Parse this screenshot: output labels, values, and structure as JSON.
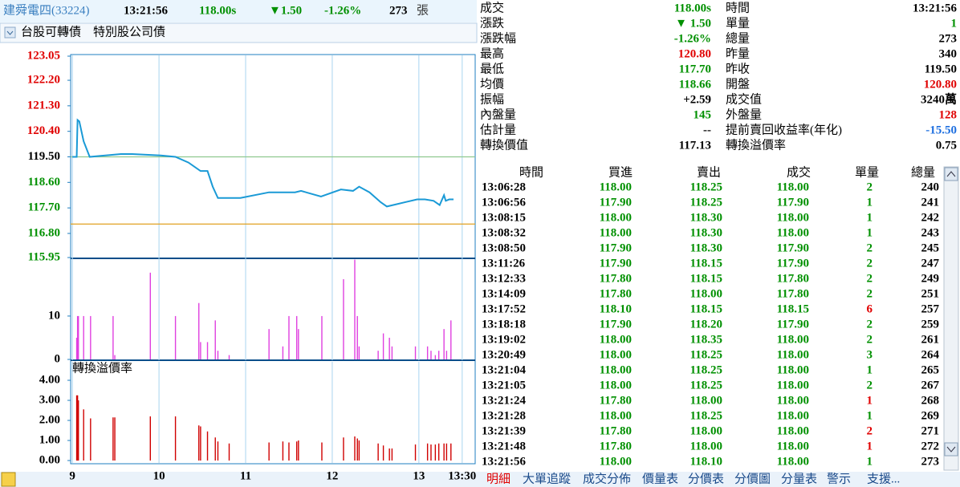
{
  "header": {
    "title": "建舜電四(33224)",
    "time": "13:21:56",
    "price": "118.00s",
    "change": "▼1.50",
    "change_pct": "-1.26%",
    "volume": "273",
    "volume_unit": "張"
  },
  "subbar": {
    "items": [
      "台股可轉債",
      "特別股公司債"
    ]
  },
  "chart_data": [
    {
      "type": "line",
      "color": "#1a9ad6",
      "x": [
        9.0,
        9.05,
        9.06,
        9.08,
        9.13,
        9.2,
        9.56,
        9.69,
        10.02,
        10.19,
        10.34,
        10.48,
        10.56,
        10.62,
        10.68,
        10.94,
        11.27,
        11.57,
        11.64,
        11.87,
        12.1,
        12.24,
        12.31,
        12.43,
        12.56,
        12.63,
        12.7,
        12.98,
        13.07,
        13.17,
        13.24,
        13.29,
        13.31,
        13.35,
        13.4
      ],
      "values": [
        119.5,
        119.5,
        120.8,
        120.75,
        120.05,
        119.5,
        119.6,
        119.6,
        119.55,
        119.5,
        119.3,
        119.0,
        119.0,
        118.45,
        118.05,
        118.05,
        118.25,
        118.25,
        118.3,
        118.1,
        118.35,
        118.3,
        118.45,
        118.25,
        117.9,
        117.75,
        117.8,
        118.0,
        118.0,
        117.95,
        117.8,
        118.15,
        117.95,
        118.0,
        118.0
      ],
      "xlim": [
        8.98,
        13.65
      ],
      "ylim": [
        115.95,
        123.05
      ],
      "yticks": [
        123.05,
        {
          "value": 122.2,
          "label": "122.20"
        },
        {
          "value": 121.3,
          "label": "121.30"
        },
        {
          "value": 120.4,
          "label": "120.40"
        },
        {
          "value": 119.5,
          "label": "119.50"
        },
        {
          "value": 118.6,
          "label": "118.60"
        },
        {
          "value": 117.7,
          "label": "117.70"
        },
        {
          "value": 116.8,
          "label": "116.80"
        },
        115.95
      ],
      "reference": 119.5,
      "lines": [
        {
          "value": 119.5,
          "color": "#8fc98f"
        },
        {
          "value": 117.13,
          "color": "#e0a020"
        }
      ]
    },
    {
      "type": "bar",
      "color": "#e040e0",
      "x": [
        9.05,
        9.06,
        9.07,
        9.13,
        9.21,
        9.47,
        9.49,
        9.9,
        10.19,
        10.46,
        10.48,
        10.56,
        10.65,
        10.68,
        10.81,
        11.27,
        11.43,
        11.5,
        11.59,
        11.61,
        11.88,
        12.13,
        12.26,
        12.29,
        12.31,
        12.53,
        12.59,
        12.66,
        12.69,
        12.96,
        13.1,
        13.14,
        13.19,
        13.23,
        13.29,
        13.32,
        13.37
      ],
      "values": [
        5,
        10,
        10,
        10,
        10,
        10,
        1,
        20,
        10,
        13,
        4,
        4,
        9,
        2,
        1,
        7,
        3,
        10,
        10,
        7,
        10,
        18.5,
        23,
        10,
        3,
        2,
        6,
        5,
        3,
        3,
        3,
        2,
        1,
        2,
        7,
        2,
        9
      ],
      "xlim": [
        8.98,
        13.65
      ],
      "ylim": [
        0,
        23.3
      ],
      "yticks": [
        10,
        0
      ]
    },
    {
      "type": "bar",
      "title": "轉換溢價率",
      "color": "#d00000",
      "x": [
        9.05,
        9.06,
        9.07,
        9.13,
        9.21,
        9.47,
        9.49,
        9.9,
        10.19,
        10.46,
        10.48,
        10.56,
        10.65,
        10.68,
        10.81,
        11.27,
        11.43,
        11.5,
        11.59,
        11.61,
        11.88,
        12.13,
        12.26,
        12.29,
        12.31,
        12.53,
        12.59,
        12.66,
        12.69,
        12.96,
        13.1,
        13.14,
        13.19,
        13.23,
        13.29,
        13.32,
        13.37
      ],
      "values": [
        3.25,
        3.25,
        3.0,
        2.55,
        2.1,
        2.15,
        2.15,
        2.2,
        2.2,
        1.75,
        1.7,
        1.45,
        1.15,
        0.95,
        0.85,
        0.9,
        0.95,
        0.9,
        0.95,
        1.0,
        0.9,
        1.15,
        1.2,
        1.1,
        1.0,
        0.85,
        0.75,
        0.6,
        0.6,
        0.8,
        0.85,
        0.8,
        0.8,
        0.85,
        0.85,
        0.85,
        0.85
      ],
      "xlim": [
        8.98,
        13.65
      ],
      "ylim": [
        0,
        4.88
      ],
      "yticks": [
        {
          "value": 4,
          "label": "4.00"
        },
        {
          "value": 3,
          "label": "3.00"
        },
        {
          "value": 2,
          "label": "2.00"
        },
        {
          "value": 1,
          "label": "1.00"
        },
        {
          "value": 0,
          "label": "0.00"
        }
      ],
      "xticks": [
        9,
        10,
        11,
        12,
        13,
        {
          "value": 13.5,
          "label": "13:30"
        }
      ]
    }
  ],
  "quote": [
    [
      {
        "label": "成交",
        "value": "118.00s",
        "color": "#009000"
      },
      {
        "label": "時間",
        "value": "13:21:56",
        "color": "#000"
      }
    ],
    [
      {
        "label": "漲跌",
        "value": "▼ 1.50",
        "color": "#009000"
      },
      {
        "label": "單量",
        "value": "1",
        "color": "#009000"
      }
    ],
    [
      {
        "label": "漲跌幅",
        "value": "-1.26%",
        "color": "#009000"
      },
      {
        "label": "總量",
        "value": "273",
        "color": "#000"
      }
    ],
    [
      {
        "label": "最高",
        "value": "120.80",
        "color": "#e00000"
      },
      {
        "label": "昨量",
        "value": "340",
        "color": "#000"
      }
    ],
    [
      {
        "label": "最低",
        "value": "117.70",
        "color": "#009000"
      },
      {
        "label": "昨收",
        "value": "119.50",
        "color": "#000"
      }
    ],
    [
      {
        "label": "均價",
        "value": "118.66",
        "color": "#009000"
      },
      {
        "label": "開盤",
        "value": "120.80",
        "color": "#e00000"
      }
    ],
    [
      {
        "label": "振幅",
        "value": "+2.59",
        "color": "#000"
      },
      {
        "label": "成交值",
        "value": "3240萬",
        "color": "#000"
      }
    ],
    [
      {
        "label": "內盤量",
        "value": "145",
        "color": "#009000"
      },
      {
        "label": "外盤量",
        "value": "128",
        "color": "#e00000"
      }
    ],
    [
      {
        "label": "估計量",
        "value": "--",
        "color": "#000"
      },
      {
        "label": "提前賣回收益率(年化)",
        "value": "-15.50",
        "color": "#1e6fe0"
      }
    ],
    [
      {
        "label": "轉換價值",
        "value": "117.13",
        "color": "#000"
      },
      {
        "label": "轉換溢價率",
        "value": "0.75",
        "color": "#000"
      }
    ]
  ],
  "trades": {
    "columns": [
      "時間",
      "買進",
      "賣出",
      "成交",
      "單量",
      "總量"
    ],
    "rows": [
      {
        "cells": [
          "13:06:28",
          "118.00",
          "118.25",
          "118.00",
          "2",
          "240"
        ],
        "vol_color": "#009000"
      },
      {
        "cells": [
          "13:06:56",
          "117.90",
          "118.25",
          "117.90",
          "1",
          "241"
        ],
        "vol_color": "#009000"
      },
      {
        "cells": [
          "13:08:15",
          "118.00",
          "118.30",
          "118.00",
          "1",
          "242"
        ],
        "vol_color": "#009000"
      },
      {
        "cells": [
          "13:08:32",
          "118.00",
          "118.30",
          "118.00",
          "1",
          "243"
        ],
        "vol_color": "#009000"
      },
      {
        "cells": [
          "13:08:50",
          "117.90",
          "118.30",
          "117.90",
          "2",
          "245"
        ],
        "vol_color": "#009000"
      },
      {
        "cells": [
          "13:11:26",
          "117.90",
          "118.15",
          "117.90",
          "2",
          "247"
        ],
        "vol_color": "#009000"
      },
      {
        "cells": [
          "13:12:33",
          "117.80",
          "118.15",
          "117.80",
          "2",
          "249"
        ],
        "vol_color": "#009000"
      },
      {
        "cells": [
          "13:14:09",
          "117.80",
          "118.00",
          "117.80",
          "2",
          "251"
        ],
        "vol_color": "#009000"
      },
      {
        "cells": [
          "13:17:52",
          "118.10",
          "118.15",
          "118.15",
          "6",
          "257"
        ],
        "vol_color": "#e00000"
      },
      {
        "cells": [
          "13:18:18",
          "117.90",
          "118.20",
          "117.90",
          "2",
          "259"
        ],
        "vol_color": "#009000"
      },
      {
        "cells": [
          "13:19:02",
          "118.00",
          "118.35",
          "118.00",
          "2",
          "261"
        ],
        "vol_color": "#009000"
      },
      {
        "cells": [
          "13:20:49",
          "118.00",
          "118.25",
          "118.00",
          "3",
          "264"
        ],
        "vol_color": "#009000"
      },
      {
        "cells": [
          "13:21:04",
          "118.00",
          "118.25",
          "118.00",
          "1",
          "265"
        ],
        "vol_color": "#009000"
      },
      {
        "cells": [
          "13:21:05",
          "118.00",
          "118.25",
          "118.00",
          "2",
          "267"
        ],
        "vol_color": "#009000"
      },
      {
        "cells": [
          "13:21:24",
          "117.80",
          "118.00",
          "118.00",
          "1",
          "268"
        ],
        "vol_color": "#e00000"
      },
      {
        "cells": [
          "13:21:28",
          "118.00",
          "118.25",
          "118.00",
          "1",
          "269"
        ],
        "vol_color": "#009000"
      },
      {
        "cells": [
          "13:21:39",
          "117.80",
          "118.00",
          "118.00",
          "2",
          "271"
        ],
        "vol_color": "#e00000"
      },
      {
        "cells": [
          "13:21:48",
          "117.80",
          "118.00",
          "118.00",
          "1",
          "272"
        ],
        "vol_color": "#e00000"
      },
      {
        "cells": [
          "13:21:56",
          "118.00",
          "118.10",
          "118.00",
          "1",
          "273"
        ],
        "vol_color": "#009000"
      }
    ]
  },
  "tabs": [
    "明細",
    "大單追蹤",
    "成交分佈",
    "價量表",
    "分價表",
    "分價圖",
    "分量表",
    "警示",
    "支援..."
  ]
}
